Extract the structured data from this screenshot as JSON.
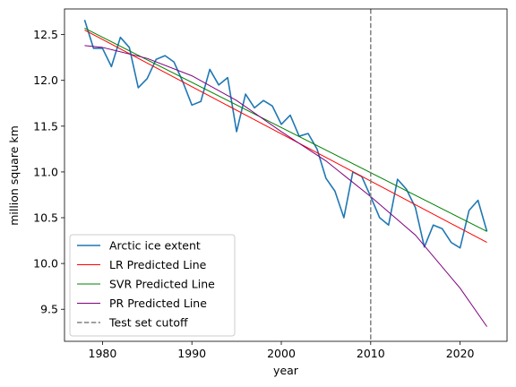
{
  "chart_data": {
    "type": "line",
    "xlabel": "year",
    "ylabel": "million square km",
    "xlim": [
      1975.75,
      2025.25
    ],
    "ylim": [
      9.15,
      12.78
    ],
    "x_ticks": [
      1980,
      1990,
      2000,
      2010,
      2020
    ],
    "y_ticks": [
      9.5,
      10.0,
      10.5,
      11.0,
      11.5,
      12.0,
      12.5
    ],
    "x_tick_labels": [
      "1980",
      "1990",
      "2000",
      "2010",
      "2020"
    ],
    "y_tick_labels": [
      "9.5",
      "10.0",
      "10.5",
      "11.0",
      "11.5",
      "12.0",
      "12.5"
    ],
    "grid": false,
    "legend_position": "lower-left",
    "series": [
      {
        "name": "Arctic ice extent",
        "color": "#1f77b4",
        "style": "solid",
        "x": [
          1978,
          1979,
          1980,
          1981,
          1982,
          1983,
          1984,
          1985,
          1986,
          1987,
          1988,
          1989,
          1990,
          1991,
          1992,
          1993,
          1994,
          1995,
          1996,
          1997,
          1998,
          1999,
          2000,
          2001,
          2002,
          2003,
          2004,
          2005,
          2006,
          2007,
          2008,
          2009,
          2010,
          2011,
          2012,
          2013,
          2014,
          2015,
          2016,
          2017,
          2018,
          2019,
          2020,
          2021,
          2022,
          2023
        ],
        "y": [
          12.66,
          12.35,
          12.35,
          12.15,
          12.47,
          12.36,
          11.92,
          12.02,
          12.23,
          12.27,
          12.2,
          11.98,
          11.73,
          11.77,
          12.12,
          11.95,
          12.03,
          11.44,
          11.85,
          11.7,
          11.78,
          11.72,
          11.52,
          11.62,
          11.39,
          11.42,
          11.25,
          10.93,
          10.79,
          10.5,
          11.0,
          10.95,
          10.73,
          10.5,
          10.42,
          10.92,
          10.81,
          10.61,
          10.18,
          10.42,
          10.38,
          10.23,
          10.17,
          10.58,
          10.69,
          10.35
        ]
      },
      {
        "name": "LR Predicted Line",
        "color": "#ff0000",
        "style": "solid",
        "x": [
          1978,
          2023
        ],
        "y": [
          12.55,
          10.23
        ]
      },
      {
        "name": "SVR Predicted Line",
        "color": "#008000",
        "style": "solid",
        "x": [
          1978,
          2023
        ],
        "y": [
          12.57,
          10.35
        ]
      },
      {
        "name": "PR Predicted Line",
        "color": "#800080",
        "style": "solid",
        "x": [
          1978,
          1980,
          1985,
          1990,
          1995,
          2000,
          2005,
          2010,
          2015,
          2020,
          2023
        ],
        "y": [
          12.38,
          12.36,
          12.24,
          12.05,
          11.78,
          11.44,
          11.12,
          10.73,
          10.31,
          9.73,
          9.31
        ]
      },
      {
        "name": "Test set cutoff",
        "color": "#808080",
        "style": "dashed",
        "vertical_at": 2010
      }
    ]
  }
}
